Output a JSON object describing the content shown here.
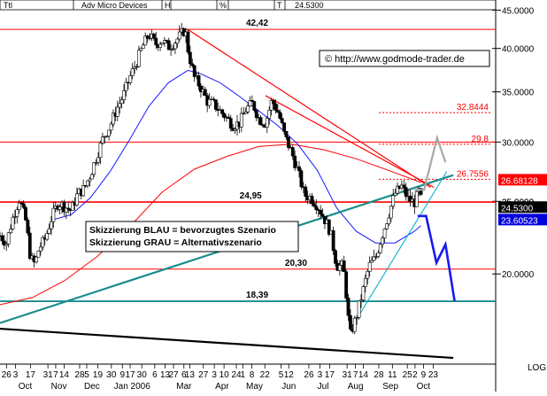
{
  "chart_data": {
    "type": "candlestick",
    "header": {
      "symbol": "Ttl",
      "name": "Adv Micro Devices",
      "field_h": "H",
      "field_pct": "%",
      "field_t": "T",
      "last": "24.5300"
    },
    "copyright": "© http://www.godmode-trader.de",
    "scale": "LOG",
    "y_ticks": [
      "45.0000",
      "40.0000",
      "35.0000",
      "30.0000",
      "25.0000",
      "20.0000"
    ],
    "y_tick_values": [
      45,
      40,
      35,
      30,
      25,
      20
    ],
    "ylim": [
      15.2,
      45.3
    ],
    "x_domain": [
      0,
      76
    ],
    "x_day_labels": [
      {
        "x": 1,
        "t": "26"
      },
      {
        "x": 2.4,
        "t": "3"
      },
      {
        "x": 4.7,
        "t": "17"
      },
      {
        "x": 7.4,
        "t": "31"
      },
      {
        "x": 8.6,
        "t": "7"
      },
      {
        "x": 9.9,
        "t": "14"
      },
      {
        "x": 12.3,
        "t": "28"
      },
      {
        "x": 13.4,
        "t": "5"
      },
      {
        "x": 15.1,
        "t": "19"
      },
      {
        "x": 17.2,
        "t": "30"
      },
      {
        "x": 18.9,
        "t": "9"
      },
      {
        "x": 20.1,
        "t": "17"
      },
      {
        "x": 21.9,
        "t": "30"
      },
      {
        "x": 23.9,
        "t": "6"
      },
      {
        "x": 25.5,
        "t": "13"
      },
      {
        "x": 26.8,
        "t": "27"
      },
      {
        "x": 28.4,
        "t": "6"
      },
      {
        "x": 29.3,
        "t": "13"
      },
      {
        "x": 31.4,
        "t": "27"
      },
      {
        "x": 33.1,
        "t": "3"
      },
      {
        "x": 34.6,
        "t": "10"
      },
      {
        "x": 36.5,
        "t": "24"
      },
      {
        "x": 37.5,
        "t": "1"
      },
      {
        "x": 38.9,
        "t": "8"
      },
      {
        "x": 40.9,
        "t": "22"
      },
      {
        "x": 43.4,
        "t": "5"
      },
      {
        "x": 44.6,
        "t": "12"
      },
      {
        "x": 47.7,
        "t": "26"
      },
      {
        "x": 49.4,
        "t": "3"
      },
      {
        "x": 50.9,
        "t": "17"
      },
      {
        "x": 53.6,
        "t": "31"
      },
      {
        "x": 54.9,
        "t": "7"
      },
      {
        "x": 56.1,
        "t": "14"
      },
      {
        "x": 58.5,
        "t": "28"
      },
      {
        "x": 60.6,
        "t": "11"
      },
      {
        "x": 62.9,
        "t": "25"
      },
      {
        "x": 64.1,
        "t": "2"
      },
      {
        "x": 65.4,
        "t": "9"
      },
      {
        "x": 66.9,
        "t": "23"
      }
    ],
    "x_month_labels": [
      {
        "x": 3.9,
        "t": "Oct"
      },
      {
        "x": 9.1,
        "t": "Nov"
      },
      {
        "x": 14.2,
        "t": "Dec"
      },
      {
        "x": 20.4,
        "t": "Jan 2006"
      },
      {
        "x": 28.4,
        "t": "Mar"
      },
      {
        "x": 34.3,
        "t": "Apr"
      },
      {
        "x": 39.3,
        "t": "May"
      },
      {
        "x": 44.6,
        "t": "Jun"
      },
      {
        "x": 49.9,
        "t": "Jul"
      },
      {
        "x": 54.9,
        "t": "Aug"
      },
      {
        "x": 60.3,
        "t": "Sep"
      },
      {
        "x": 65.4,
        "t": "Oct"
      }
    ],
    "x_right_labels": [
      "LOG"
    ],
    "prices": [
      [
        0,
        22.5
      ],
      [
        1,
        22.0
      ],
      [
        2,
        23.8
      ],
      [
        3,
        25.2
      ],
      [
        4,
        23.5
      ],
      [
        4.7,
        21.0
      ],
      [
        5.4,
        20.6
      ],
      [
        6,
        21.6
      ],
      [
        7,
        22.3
      ],
      [
        8,
        23.8
      ],
      [
        9,
        24.9
      ],
      [
        10,
        24.6
      ],
      [
        11,
        24.3
      ],
      [
        12,
        25.6
      ],
      [
        13,
        26.0
      ],
      [
        14,
        27.2
      ],
      [
        15,
        28.8
      ],
      [
        16,
        30.5
      ],
      [
        17,
        31.5
      ],
      [
        18,
        33.2
      ],
      [
        19,
        34.5
      ],
      [
        20,
        36.5
      ],
      [
        21,
        38.2
      ],
      [
        22,
        40.2
      ],
      [
        23,
        41.8
      ],
      [
        24,
        40.5
      ],
      [
        25,
        41.0
      ],
      [
        26,
        40.2
      ],
      [
        27,
        40.8
      ],
      [
        28,
        41.8
      ],
      [
        28.6,
        42.4
      ],
      [
        29.1,
        39.5
      ],
      [
        30,
        36.6
      ],
      [
        31,
        35.5
      ],
      [
        32,
        34.0
      ],
      [
        33,
        33.7
      ],
      [
        34,
        33.0
      ],
      [
        35,
        32.3
      ],
      [
        36,
        31.6
      ],
      [
        37,
        31.8
      ],
      [
        38,
        33.2
      ],
      [
        39,
        33.8
      ],
      [
        40,
        32.2
      ],
      [
        41,
        31.8
      ],
      [
        42,
        34.1
      ],
      [
        43,
        32.8
      ],
      [
        44,
        30.5
      ],
      [
        45,
        29.1
      ],
      [
        46,
        27.4
      ],
      [
        47,
        25.5
      ],
      [
        48,
        25.3
      ],
      [
        49,
        24.7
      ],
      [
        50,
        23.8
      ],
      [
        51,
        22.8
      ],
      [
        52,
        20.5
      ],
      [
        53,
        20.5
      ],
      [
        53.6,
        18.3
      ],
      [
        54,
        16.5
      ],
      [
        55,
        17.5
      ],
      [
        56,
        18.9
      ],
      [
        57,
        20.5
      ],
      [
        58,
        21.0
      ],
      [
        59,
        22.5
      ],
      [
        60,
        24.0
      ],
      [
        61,
        25.6
      ],
      [
        62,
        26.2
      ],
      [
        63,
        25.2
      ],
      [
        64,
        24.9
      ],
      [
        64.8,
        25.9
      ],
      [
        65.2,
        24.5
      ]
    ],
    "ma_blue": [
      [
        8,
        23.6
      ],
      [
        11,
        24.0
      ],
      [
        14,
        25.3
      ],
      [
        17,
        27.4
      ],
      [
        20,
        30.2
      ],
      [
        23,
        33.5
      ],
      [
        26,
        36.0
      ],
      [
        29,
        37.4
      ],
      [
        31,
        37.0
      ],
      [
        34,
        36.0
      ],
      [
        37,
        34.5
      ],
      [
        40,
        33.0
      ],
      [
        43,
        31.5
      ],
      [
        46,
        29.8
      ],
      [
        49,
        27.5
      ],
      [
        52,
        24.5
      ],
      [
        55,
        22.8
      ],
      [
        58,
        22.0
      ],
      [
        61,
        22.0
      ],
      [
        64,
        22.8
      ],
      [
        65,
        23.2
      ]
    ],
    "ma_red": [
      [
        0,
        18.2
      ],
      [
        5,
        18.6
      ],
      [
        10,
        19.6
      ],
      [
        15,
        21.1
      ],
      [
        20,
        23.1
      ],
      [
        25,
        25.7
      ],
      [
        30,
        27.6
      ],
      [
        35,
        28.7
      ],
      [
        40,
        29.6
      ],
      [
        45,
        29.8
      ],
      [
        50,
        29.3
      ],
      [
        55,
        28.5
      ],
      [
        60,
        27.5
      ],
      [
        65,
        26.5
      ]
    ],
    "lines": [
      {
        "kind": "trend",
        "color": "#ff0000",
        "width": 1.2,
        "p1": [
          29,
          42.4
        ],
        "p2": [
          66.5,
          26.1
        ]
      },
      {
        "kind": "trend",
        "color": "#ff0000",
        "width": 1.2,
        "p1": [
          41,
          34.6
        ],
        "p2": [
          67,
          26.1
        ]
      },
      {
        "kind": "trend",
        "color": "#1a8c8c",
        "width": 2.2,
        "p1": [
          0,
          17.2
        ],
        "p2": [
          70,
          27.1
        ]
      },
      {
        "kind": "trend",
        "color": "#00b4c8",
        "width": 1.1,
        "p1": [
          54,
          16.8
        ],
        "p2": [
          69,
          27.4
        ]
      },
      {
        "kind": "trend",
        "color": "#000000",
        "width": 2.2,
        "p1": [
          0,
          16.9
        ],
        "p2": [
          70,
          15.45
        ]
      }
    ],
    "hlines": [
      {
        "y": 42.42,
        "color": "#ff0000",
        "label": "42,42",
        "lx": 38,
        "dash": false
      },
      {
        "y": 30.0,
        "color": "#ff0000",
        "label": "",
        "lx": 0,
        "dash": false
      },
      {
        "y": 24.95,
        "color": "#ff0000",
        "label": "24,95",
        "lx": 37,
        "dash": false,
        "width": 1.6
      },
      {
        "y": 20.3,
        "color": "#ff0000",
        "label": "20,30",
        "lx": 44,
        "dash": false
      },
      {
        "y": 18.39,
        "color": "#1a8c8c",
        "label": "18,39",
        "lx": 38,
        "dash": false,
        "width": 1.8
      }
    ],
    "fib_levels": [
      {
        "y": 32.8444,
        "label": "32.8444"
      },
      {
        "y": 29.8,
        "label": "29.8"
      },
      {
        "y": 26.7556,
        "label": "26.7556"
      }
    ],
    "scenario_blue": [
      [
        64.5,
        23.9
      ],
      [
        65.8,
        23.9
      ],
      [
        67.4,
        20.7
      ],
      [
        68.8,
        21.9
      ],
      [
        70.2,
        18.4
      ]
    ],
    "scenario_gray": [
      [
        64,
        25.9
      ],
      [
        65.5,
        25.9
      ],
      [
        67.5,
        30.4
      ],
      [
        68.8,
        28.2
      ]
    ],
    "price_tags": [
      {
        "y": 26.68128,
        "label": "26.68128",
        "bg": "#ff0000",
        "fg": "#ffffff"
      },
      {
        "y": 24.53,
        "label": "24.5300",
        "bg": "#000000",
        "fg": "#ffffff"
      },
      {
        "y": 23.60523,
        "label": "23.60523",
        "bg": "#0000dd",
        "fg": "#ffffff"
      }
    ],
    "partial_tick": "25.0000",
    "legend_lines": [
      "Skizzierung BLAU = bevorzugtes Szenario",
      "Skizzierung GRAU = Alternativszenario"
    ]
  }
}
